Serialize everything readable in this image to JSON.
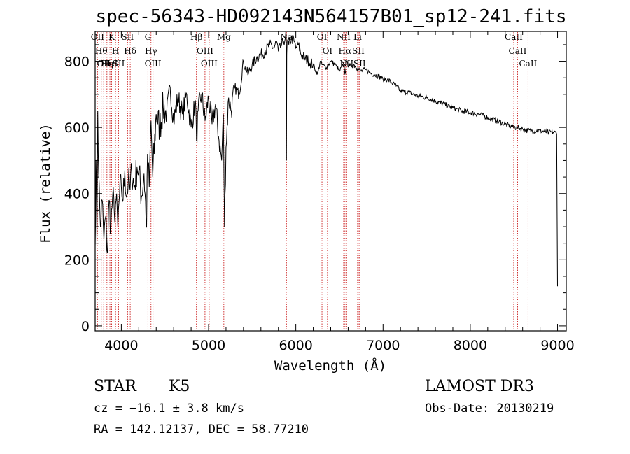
{
  "chart_data": {
    "type": "line",
    "title": "spec-56343-HD092143N564157B01_sp12-241.fits",
    "xlabel": "Wavelength (Å)",
    "ylabel": "Flux (relative)",
    "xlim": [
      3700,
      9100
    ],
    "ylim": [
      -15,
      890
    ],
    "x_ticks": [
      4000,
      5000,
      6000,
      7000,
      8000,
      9000
    ],
    "y_ticks": [
      0,
      200,
      400,
      600,
      800
    ],
    "grid": false,
    "series": [
      {
        "name": "spectrum",
        "x": [
          3700,
          3710,
          3720,
          3730,
          3740,
          3760,
          3780,
          3800,
          3820,
          3840,
          3860,
          3880,
          3900,
          3920,
          3940,
          3960,
          3980,
          4000,
          4020,
          4040,
          4060,
          4080,
          4100,
          4120,
          4150,
          4180,
          4200,
          4230,
          4260,
          4290,
          4300,
          4320,
          4340,
          4360,
          4400,
          4440,
          4480,
          4520,
          4560,
          4600,
          4650,
          4700,
          4750,
          4800,
          4850,
          4862,
          4880,
          4920,
          4960,
          5000,
          5040,
          5080,
          5120,
          5150,
          5170,
          5183,
          5200,
          5230,
          5260,
          5300,
          5350,
          5400,
          5450,
          5500,
          5550,
          5600,
          5650,
          5700,
          5750,
          5780,
          5800,
          5830,
          5860,
          5880,
          5890,
          5893,
          5896,
          5900,
          5920,
          5950,
          5980,
          6000,
          6030,
          6060,
          6100,
          6150,
          6200,
          6250,
          6280,
          6300,
          6350,
          6400,
          6450,
          6500,
          6550,
          6563,
          6580,
          6620,
          6660,
          6700,
          6750,
          6800,
          6850,
          6900,
          6950,
          7000,
          7050,
          7100,
          7150,
          7200,
          7300,
          7400,
          7500,
          7600,
          7700,
          7800,
          7900,
          8000,
          8100,
          8200,
          8300,
          8400,
          8500,
          8540,
          8600,
          8660,
          8700,
          8800,
          8900,
          8980,
          8990,
          9000
        ],
        "y": [
          240,
          500,
          250,
          650,
          460,
          300,
          380,
          260,
          330,
          220,
          380,
          300,
          390,
          340,
          380,
          300,
          400,
          420,
          380,
          470,
          390,
          440,
          410,
          470,
          420,
          480,
          470,
          390,
          460,
          300,
          520,
          420,
          620,
          450,
          640,
          600,
          660,
          640,
          720,
          620,
          690,
          640,
          700,
          600,
          680,
          560,
          650,
          700,
          620,
          690,
          610,
          670,
          560,
          500,
          640,
          300,
          540,
          690,
          650,
          720,
          700,
          800,
          760,
          790,
          810,
          820,
          830,
          850,
          840,
          860,
          830,
          845,
          860,
          870,
          880,
          500,
          820,
          860,
          850,
          870,
          860,
          840,
          850,
          820,
          810,
          800,
          790,
          760,
          800,
          790,
          780,
          800,
          790,
          770,
          790,
          760,
          795,
          785,
          790,
          780,
          770,
          775,
          765,
          760,
          755,
          745,
          745,
          735,
          725,
          710,
          705,
          695,
          690,
          680,
          670,
          660,
          650,
          645,
          640,
          630,
          620,
          610,
          600,
          600,
          595,
          590,
          590,
          590,
          585,
          585,
          580,
          120
        ]
      }
    ],
    "line_markers": [
      {
        "wl": 3727,
        "label": "OII"
      },
      {
        "wl": 3770,
        "label": "Hθ"
      },
      {
        "wl": 3798,
        "label": "OII"
      },
      {
        "wl": 3835,
        "label": "Hη"
      },
      {
        "wl": 3869,
        "label": "HeI"
      },
      {
        "wl": 3889,
        "label": "K"
      },
      {
        "wl": 3934,
        "label": "H"
      },
      {
        "wl": 3969,
        "label": "SII"
      },
      {
        "wl": 4072,
        "label": "SII"
      },
      {
        "wl": 4102,
        "label": "Hδ"
      },
      {
        "wl": 4305,
        "label": "G"
      },
      {
        "wl": 4340,
        "label": "Hγ"
      },
      {
        "wl": 4363,
        "label": "OIII"
      },
      {
        "wl": 4861,
        "label": "Hβ"
      },
      {
        "wl": 4959,
        "label": "OIII"
      },
      {
        "wl": 5007,
        "label": "OIII"
      },
      {
        "wl": 5175,
        "label": "Mg"
      },
      {
        "wl": 5893,
        "label": "Na"
      },
      {
        "wl": 6300,
        "label": "OI"
      },
      {
        "wl": 6363,
        "label": "OI"
      },
      {
        "wl": 6548,
        "label": "NII"
      },
      {
        "wl": 6563,
        "label": "Hα"
      },
      {
        "wl": 6583,
        "label": "NII"
      },
      {
        "wl": 6708,
        "label": "Li"
      },
      {
        "wl": 6717,
        "label": "SII"
      },
      {
        "wl": 6731,
        "label": "SII"
      },
      {
        "wl": 8498,
        "label": "CaII"
      },
      {
        "wl": 8542,
        "label": "CaII"
      },
      {
        "wl": 8662,
        "label": "CaII"
      }
    ]
  },
  "info": {
    "object_type": "STAR",
    "subclass": "K5",
    "survey": "LAMOST DR3",
    "cz": "cz = −16.1 ± 3.8 km/s",
    "obs_date": "Obs-Date: 20130219",
    "coords": "RA = 142.12137, DEC =  58.77210"
  }
}
